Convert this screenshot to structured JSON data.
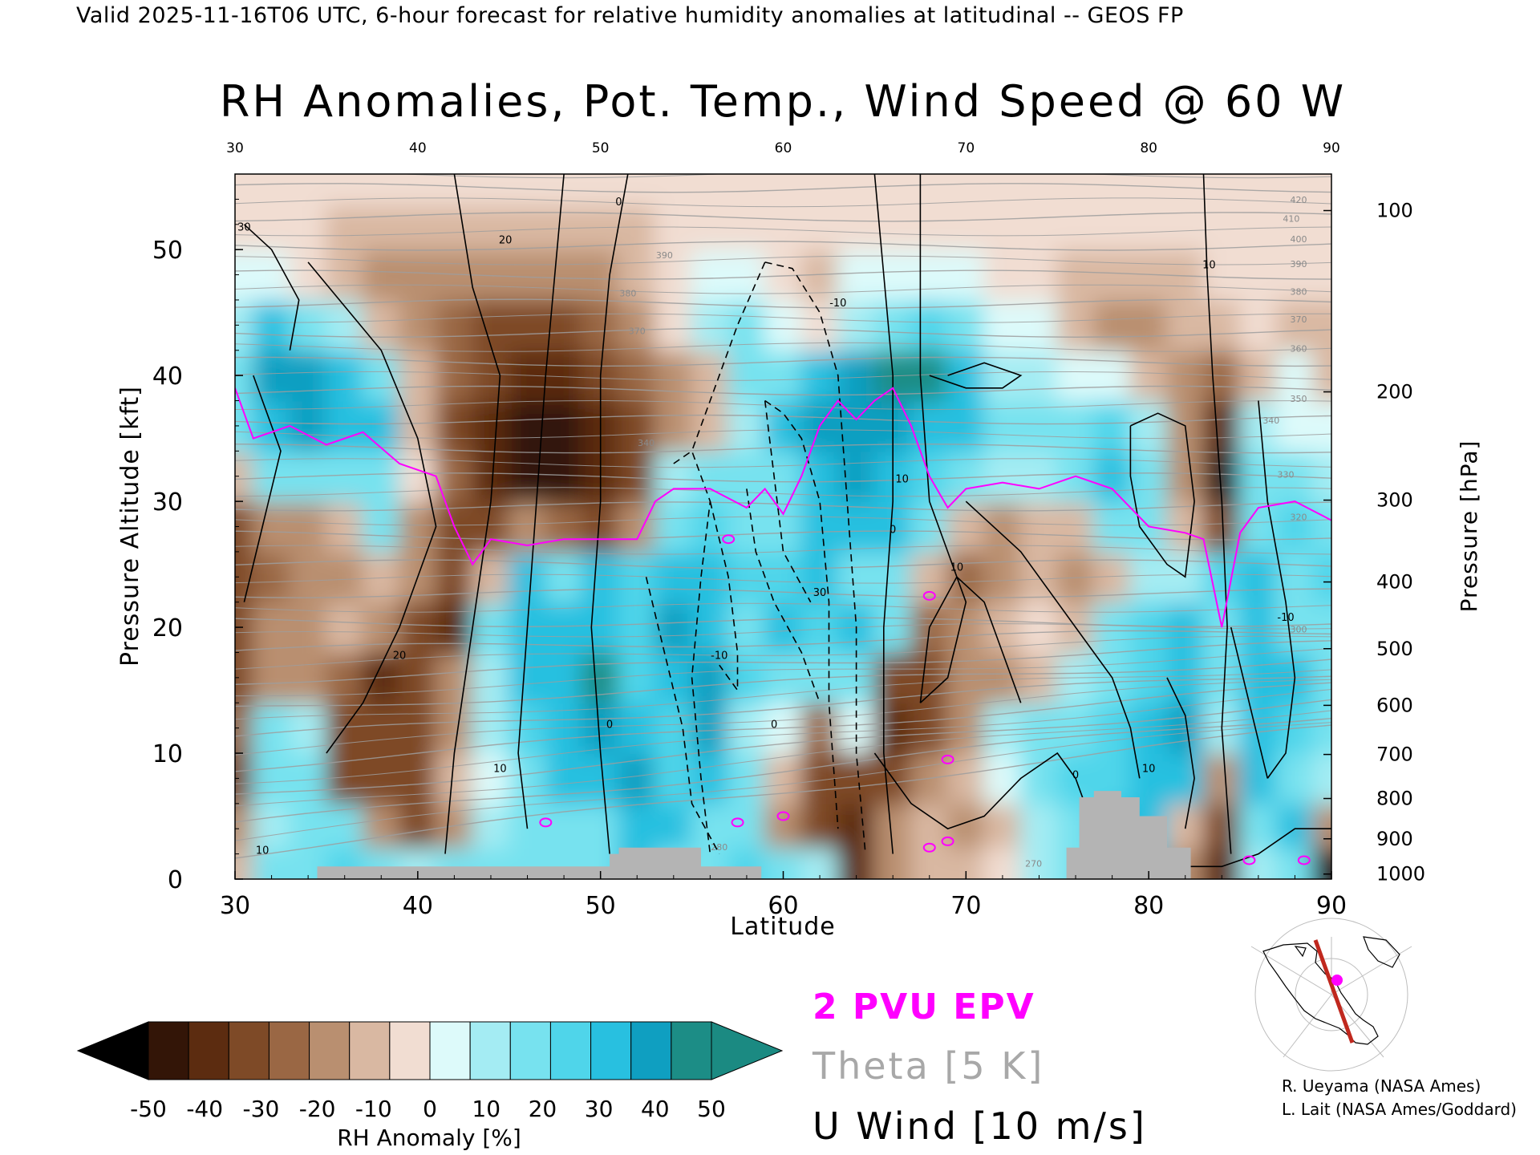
{
  "header": "Valid 2025-11-16T06 UTC, 6-hour forecast for relative humidity anomalies at latitudinal -- GEOS FP",
  "credits": [
    "R. Ueyama (NASA Ames)",
    "L. Lait (NASA Ames/Goddard)"
  ],
  "colors": {
    "epv": "#ff00ff",
    "theta": "#a8a8a8",
    "uwind": "#000000",
    "terrain": "#b4b4b4"
  },
  "chart_data": {
    "type": "heatmap",
    "title": "RH Anomalies, Pot. Temp., Wind Speed @ 60 W",
    "xlabel": "Latitude",
    "ylabel": "Pressure Altitude [kft]",
    "y2label": "Pressure [hPa]",
    "xlim": [
      30,
      90
    ],
    "ylim": [
      0,
      56
    ],
    "x_ticks": [
      "30",
      "40",
      "50",
      "60",
      "70",
      "80",
      "90"
    ],
    "x_top_ticks": [
      "30",
      "40",
      "50",
      "60",
      "70",
      "80",
      "90"
    ],
    "y_ticks": [
      "0",
      "10",
      "20",
      "30",
      "40",
      "50"
    ],
    "pressure_ticks": [
      {
        "label": "100",
        "kft": 53.1
      },
      {
        "label": "200",
        "kft": 38.7
      },
      {
        "label": "300",
        "kft": 30.1
      },
      {
        "label": "400",
        "kft": 23.6
      },
      {
        "label": "500",
        "kft": 18.3
      },
      {
        "label": "600",
        "kft": 13.8
      },
      {
        "label": "700",
        "kft": 9.9
      },
      {
        "label": "800",
        "kft": 6.4
      },
      {
        "label": "900",
        "kft": 3.2
      },
      {
        "label": "1000",
        "kft": 0.4
      }
    ],
    "legend": [
      {
        "label": "2 PVU EPV",
        "color": "#ff00ff"
      },
      {
        "label": "Theta [5 K]",
        "color": "#a8a8a8"
      },
      {
        "label": "U Wind [10 m/s]",
        "color": "#000000"
      }
    ],
    "colorbar": {
      "label": "RH Anomaly [%]",
      "ticks": [
        "-50",
        "-40",
        "-30",
        "-20",
        "-10",
        "0",
        "10",
        "20",
        "30",
        "40",
        "50"
      ],
      "colors": [
        "#331507",
        "#5c2c10",
        "#7e4a27",
        "#9a6744",
        "#b98f70",
        "#d9b8a2",
        "#f1ddd2",
        "#ddfafa",
        "#a4ecf3",
        "#77e2ef",
        "#4fd5ea",
        "#28c0e0",
        "#0f9fc1",
        "#1c8d86"
      ],
      "extend_low_color": "#000000",
      "extend_high_color": "#1b8a82"
    },
    "rh_lat": [
      30,
      32,
      34,
      36,
      38,
      40,
      42,
      44,
      46,
      48,
      50,
      52,
      54,
      56,
      58,
      60,
      62,
      64,
      66,
      68,
      70,
      72,
      74,
      76,
      78,
      80,
      82,
      84,
      86,
      88,
      90
    ],
    "rh_alt": [
      1,
      4,
      8,
      12,
      16,
      20,
      24,
      28,
      32,
      36,
      40,
      44,
      48,
      52,
      55
    ],
    "rh_anomaly": [
      [
        -10,
        15,
        20,
        25,
        20,
        10,
        15,
        20,
        20,
        15,
        20,
        30,
        20,
        20,
        25,
        15,
        10,
        -40,
        -20,
        -10,
        -10,
        -5,
        10,
        15,
        20,
        30,
        -20,
        -40,
        10,
        20,
        -45
      ],
      [
        -20,
        10,
        15,
        20,
        -20,
        -35,
        -15,
        10,
        15,
        20,
        20,
        35,
        30,
        20,
        20,
        -20,
        -30,
        -40,
        -20,
        -10,
        -20,
        -10,
        10,
        20,
        30,
        35,
        -10,
        -30,
        20,
        30,
        -20
      ],
      [
        -30,
        15,
        20,
        -30,
        -35,
        -30,
        -10,
        5,
        20,
        30,
        35,
        40,
        25,
        35,
        15,
        -10,
        -30,
        -35,
        -35,
        -20,
        -10,
        5,
        15,
        25,
        25,
        30,
        35,
        -20,
        30,
        20,
        10
      ],
      [
        -25,
        20,
        10,
        -30,
        -35,
        -30,
        -20,
        10,
        25,
        35,
        40,
        30,
        25,
        40,
        10,
        5,
        -25,
        0,
        -40,
        -30,
        -20,
        10,
        20,
        20,
        25,
        30,
        40,
        10,
        30,
        25,
        15
      ],
      [
        -30,
        -15,
        -20,
        -25,
        -40,
        -35,
        -20,
        10,
        30,
        35,
        45,
        25,
        35,
        40,
        25,
        20,
        20,
        15,
        -35,
        -35,
        -20,
        -15,
        -10,
        10,
        20,
        25,
        35,
        15,
        35,
        30,
        20
      ],
      [
        -35,
        -20,
        -15,
        -10,
        -20,
        -30,
        -40,
        20,
        35,
        30,
        30,
        25,
        40,
        30,
        20,
        35,
        25,
        30,
        20,
        -25,
        -20,
        -10,
        -5,
        -10,
        15,
        25,
        30,
        20,
        30,
        20,
        20
      ],
      [
        -35,
        -25,
        -15,
        -15,
        -10,
        -20,
        -35,
        -10,
        30,
        20,
        30,
        25,
        35,
        30,
        25,
        25,
        30,
        20,
        15,
        -10,
        -25,
        -20,
        -10,
        -15,
        -10,
        10,
        10,
        25,
        30,
        20,
        25
      ],
      [
        -30,
        -20,
        -20,
        -10,
        20,
        -15,
        -30,
        -30,
        -20,
        -25,
        -30,
        -20,
        15,
        25,
        20,
        15,
        35,
        30,
        30,
        20,
        -10,
        -15,
        -10,
        -10,
        15,
        20,
        -10,
        -30,
        20,
        25,
        20
      ],
      [
        -10,
        15,
        20,
        20,
        20,
        -5,
        -25,
        -40,
        -45,
        -45,
        -40,
        -30,
        10,
        20,
        15,
        20,
        35,
        40,
        35,
        25,
        15,
        10,
        10,
        15,
        30,
        20,
        -20,
        -45,
        15,
        20,
        10
      ],
      [
        15,
        35,
        40,
        35,
        30,
        -10,
        -30,
        -40,
        -45,
        -45,
        -40,
        -35,
        -15,
        -10,
        10,
        30,
        40,
        40,
        40,
        35,
        30,
        20,
        15,
        20,
        25,
        10,
        -20,
        -40,
        10,
        5,
        0
      ],
      [
        20,
        40,
        40,
        30,
        20,
        -10,
        -25,
        -35,
        -40,
        -40,
        -35,
        -25,
        -15,
        -10,
        15,
        20,
        30,
        40,
        45,
        45,
        30,
        10,
        10,
        5,
        0,
        -10,
        -20,
        -25,
        -10,
        0,
        -10
      ],
      [
        10,
        30,
        20,
        10,
        -10,
        -20,
        -25,
        -30,
        -30,
        -30,
        -25,
        -15,
        -5,
        10,
        15,
        5,
        -5,
        10,
        20,
        25,
        15,
        5,
        0,
        -10,
        -15,
        -15,
        -10,
        -10,
        -5,
        -10,
        -10
      ],
      [
        0,
        5,
        -5,
        -10,
        -15,
        -15,
        -20,
        -20,
        -20,
        -20,
        -15,
        -10,
        -5,
        0,
        5,
        -5,
        -10,
        0,
        5,
        5,
        0,
        -5,
        -5,
        -10,
        -10,
        -10,
        -10,
        -5,
        -5,
        -5,
        -5
      ],
      [
        -5,
        -5,
        -5,
        -10,
        -10,
        -10,
        -10,
        -10,
        -10,
        -10,
        -10,
        -10,
        -5,
        -5,
        -5,
        -5,
        -5,
        -5,
        -5,
        -5,
        -5,
        -5,
        -5,
        -5,
        -5,
        -5,
        -5,
        -5,
        -5,
        -5,
        -5
      ],
      [
        -5,
        -5,
        -5,
        -5,
        -5,
        -5,
        -5,
        -5,
        -5,
        -5,
        -5,
        -5,
        -5,
        -5,
        -5,
        -5,
        -5,
        -5,
        -5,
        -5,
        -5,
        -5,
        -5,
        -5,
        -5,
        -5,
        -5,
        -5,
        -5,
        -5,
        -5
      ]
    ],
    "epv_2pvu": {
      "lat": [
        30,
        31,
        33,
        35,
        37,
        39,
        41,
        42,
        43,
        44,
        46,
        48,
        50,
        52,
        53,
        54,
        56,
        58,
        59,
        60,
        61,
        62,
        63,
        64,
        65,
        66,
        67,
        68,
        69,
        70,
        72,
        74,
        76,
        78,
        80,
        82,
        83,
        84,
        85,
        86,
        88,
        90
      ],
      "kft": [
        39,
        35,
        36,
        34.5,
        35.5,
        33,
        32,
        28,
        25,
        27,
        26.5,
        27,
        27,
        27,
        30,
        31,
        31,
        29.5,
        31,
        29,
        32,
        36,
        38,
        36.5,
        38,
        39,
        36,
        32,
        29.5,
        31,
        31.5,
        31,
        32,
        31,
        28,
        27.5,
        27,
        20,
        27.5,
        29.5,
        30,
        28.5
      ]
    },
    "theta_levels": {
      "values": [
        270,
        280,
        290,
        300,
        310,
        320,
        330,
        340,
        350,
        360,
        370,
        380,
        390,
        400,
        410,
        420
      ],
      "annotated": [
        "270",
        "280",
        "290",
        "300",
        "310",
        "320",
        "330",
        "340",
        "350",
        "360",
        "370",
        "380",
        "390",
        "400",
        "410",
        "420"
      ]
    },
    "uwind_contours": {
      "interval": 10,
      "annotated": [
        "-10",
        "0",
        "10",
        "20",
        "30"
      ]
    },
    "terrain": {
      "lat": [
        30,
        34.5,
        34.5,
        50.5,
        50.5,
        51,
        51,
        55.5,
        55.5,
        58.8,
        58.8,
        75.5,
        75.5,
        76.2,
        76.2,
        77,
        77,
        78.5,
        78.5,
        79.5,
        79.5,
        81,
        81,
        82.3,
        82.3,
        90
      ],
      "kft": [
        0,
        0,
        1,
        1,
        2,
        2,
        2.5,
        2.5,
        1,
        1,
        0,
        0,
        2.5,
        2.5,
        6.5,
        6.5,
        7,
        7,
        6.5,
        6.5,
        5,
        5,
        2.5,
        2.5,
        0,
        0
      ]
    }
  }
}
